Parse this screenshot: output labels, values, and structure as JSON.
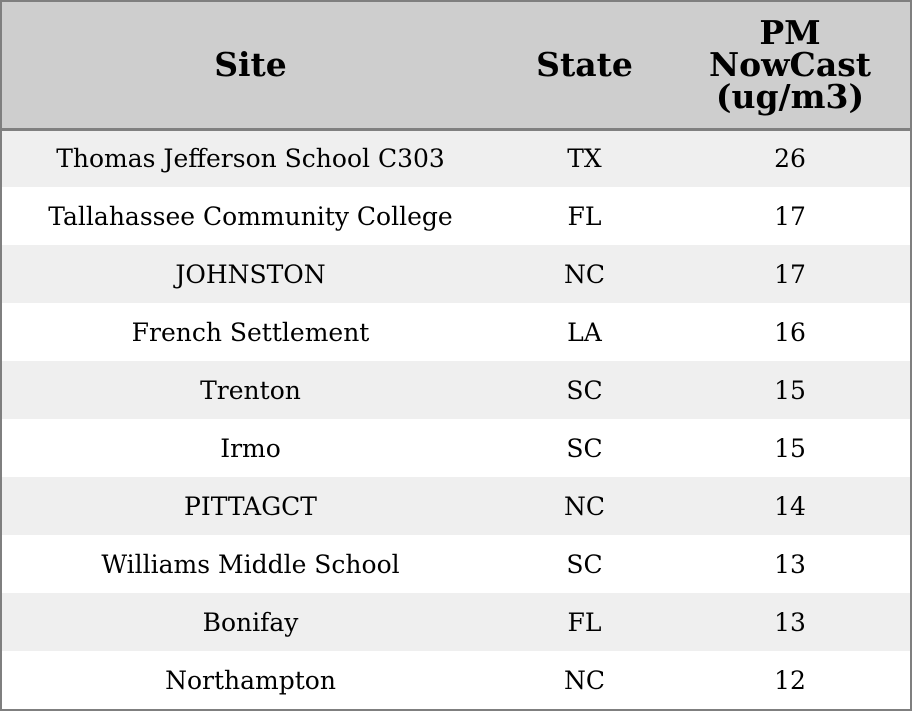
{
  "chart_data": {
    "type": "table",
    "columns": [
      "Site",
      "State",
      "PM NowCast (ug/m3)"
    ],
    "header_lines": {
      "site": [
        "Site"
      ],
      "state": [
        "State"
      ],
      "value": [
        "PM",
        "NowCast",
        "(ug/m3)"
      ]
    },
    "rows": [
      {
        "site": "Thomas Jefferson School C303",
        "state": "TX",
        "value": 26
      },
      {
        "site": "Tallahassee Community College",
        "state": "FL",
        "value": 17
      },
      {
        "site": "JOHNSTON",
        "state": "NC",
        "value": 17
      },
      {
        "site": "French Settlement",
        "state": "LA",
        "value": 16
      },
      {
        "site": "Trenton",
        "state": "SC",
        "value": 15
      },
      {
        "site": "Irmo",
        "state": "SC",
        "value": 15
      },
      {
        "site": "PITTAGCT",
        "state": "NC",
        "value": 14
      },
      {
        "site": "Williams Middle School",
        "state": "SC",
        "value": 13
      },
      {
        "site": "Bonifay",
        "state": "FL",
        "value": 13
      },
      {
        "site": "Northampton",
        "state": "NC",
        "value": 12
      }
    ],
    "colors": {
      "header_background": "#cecece",
      "row_stripe": "#efefef",
      "row_plain": "#ffffff",
      "border": "#808080"
    }
  }
}
